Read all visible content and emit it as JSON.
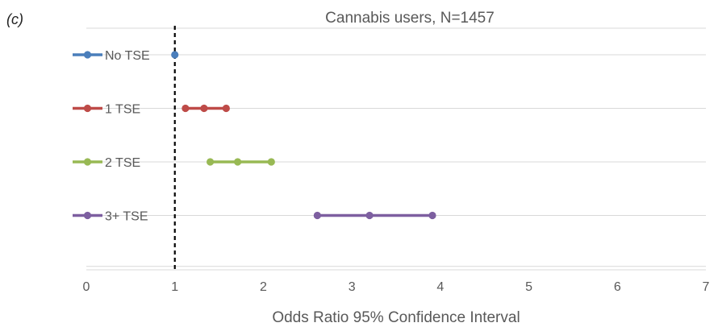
{
  "panel_label": "(c)",
  "chart_data": {
    "type": "scatter",
    "title": "Cannabis users, N=1457",
    "xlabel": "Odds Ratio 95% Confidence Interval",
    "ylabel": "",
    "xlim": [
      0,
      7
    ],
    "xticks": [
      "0",
      "1",
      "2",
      "3",
      "4",
      "5",
      "6",
      "7"
    ],
    "grid": true,
    "reference_line": {
      "x": 1,
      "style": "dashed",
      "color": "#000000"
    },
    "legend_position": "left",
    "series": [
      {
        "name": "No TSE",
        "color": "#4a7ebb",
        "values": [
          1.0
        ]
      },
      {
        "name": "1 TSE",
        "color": "#be4b48",
        "values": [
          1.12,
          1.33,
          1.58
        ]
      },
      {
        "name": "2 TSE",
        "color": "#98b954",
        "values": [
          1.4,
          1.71,
          2.09
        ]
      },
      {
        "name": "3+ TSE",
        "color": "#7d5fa0",
        "values": [
          2.61,
          3.2,
          3.91
        ]
      }
    ]
  }
}
